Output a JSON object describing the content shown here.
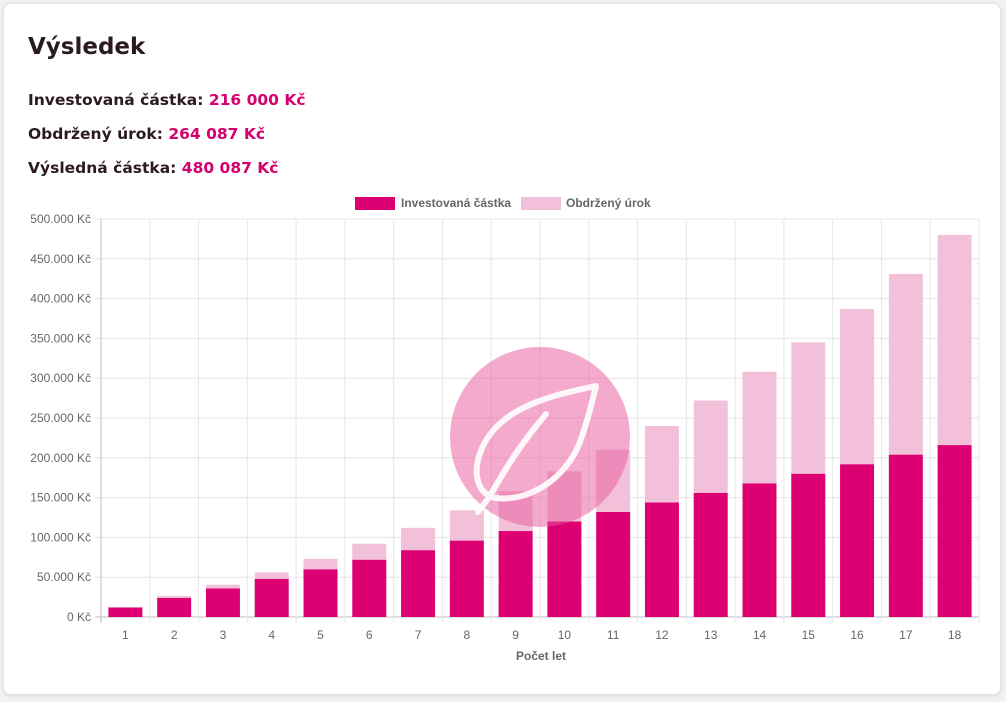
{
  "result": {
    "title": "Výsledek",
    "lines": [
      {
        "label": "Investovaná částka:",
        "value": "216 000 Kč"
      },
      {
        "label": "Obdržený úrok:",
        "value": "264 087 Kč"
      },
      {
        "label": "Výsledná částka:",
        "value": "480 087 Kč"
      }
    ]
  },
  "colors": {
    "invested": "#dc0073",
    "interest": "#f2c0d8",
    "accent_text": "#d6006e",
    "watermark": "#e7559c"
  },
  "watermark_icon": "leaf-icon",
  "chart_data": {
    "type": "bar",
    "stacked": true,
    "categories": [
      "1",
      "2",
      "3",
      "4",
      "5",
      "6",
      "7",
      "8",
      "9",
      "10",
      "11",
      "12",
      "13",
      "14",
      "15",
      "16",
      "17",
      "18"
    ],
    "series": [
      {
        "name": "Investovaná částka",
        "values": [
          12000,
          24000,
          36000,
          48000,
          60000,
          72000,
          84000,
          96000,
          108000,
          120000,
          132000,
          144000,
          156000,
          168000,
          180000,
          192000,
          204000,
          216000
        ]
      },
      {
        "name": "Obdržený úrok",
        "values": [
          100,
          2500,
          4500,
          8000,
          13000,
          20000,
          28000,
          38000,
          50000,
          63000,
          78000,
          96000,
          116000,
          140000,
          165000,
          195000,
          227000,
          264087
        ]
      }
    ],
    "xlabel": "Počet let",
    "ylabel": "",
    "ylim": [
      0,
      500000
    ],
    "yticks": [
      "0 Kč",
      "50.000 Kč",
      "100.000 Kč",
      "150.000 Kč",
      "200.000 Kč",
      "250.000 Kč",
      "300.000 Kč",
      "350.000 Kč",
      "400.000 Kč",
      "450.000 Kč",
      "500.000 Kč"
    ],
    "grid": true,
    "legend": "top"
  }
}
